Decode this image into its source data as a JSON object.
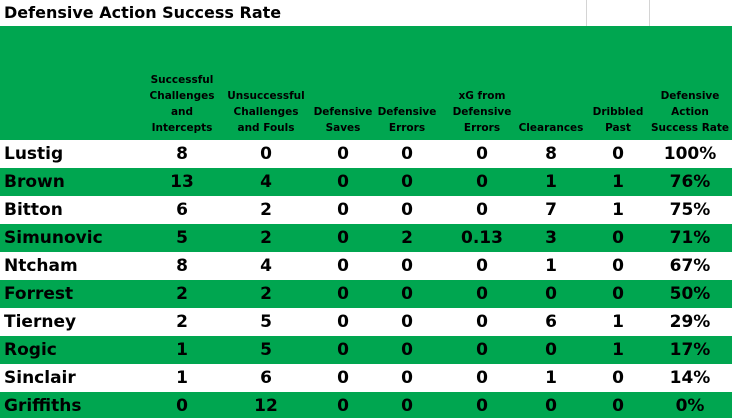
{
  "title": "Defensive Action Success Rate",
  "headers": [
    [
      "Successful",
      "Challenges",
      "and",
      "Intercepts"
    ],
    [
      "Unsuccessful",
      "Challenges",
      "and Fouls"
    ],
    [
      "Defensive",
      "Saves"
    ],
    [
      "Defensive",
      "Errors"
    ],
    [
      "xG from",
      "Defensive",
      "Errors"
    ],
    [
      "Clearances"
    ],
    [
      "Dribbled",
      "Past"
    ],
    [
      "Defensive",
      "Action",
      "Success Rate"
    ]
  ],
  "rows": [
    {
      "player": "Lustig",
      "values": [
        "8",
        "0",
        "0",
        "0",
        "0",
        "8",
        "0",
        "100%"
      ]
    },
    {
      "player": "Brown",
      "values": [
        "13",
        "4",
        "0",
        "0",
        "0",
        "1",
        "1",
        "76%"
      ]
    },
    {
      "player": "Bitton",
      "values": [
        "6",
        "2",
        "0",
        "0",
        "0",
        "7",
        "1",
        "75%"
      ]
    },
    {
      "player": "Simunovic",
      "values": [
        "5",
        "2",
        "0",
        "2",
        "0.13",
        "3",
        "0",
        "71%"
      ]
    },
    {
      "player": "Ntcham",
      "values": [
        "8",
        "4",
        "0",
        "0",
        "0",
        "1",
        "0",
        "67%"
      ]
    },
    {
      "player": "Forrest",
      "values": [
        "2",
        "2",
        "0",
        "0",
        "0",
        "0",
        "0",
        "50%"
      ]
    },
    {
      "player": "Tierney",
      "values": [
        "2",
        "5",
        "0",
        "0",
        "0",
        "6",
        "1",
        "29%"
      ]
    },
    {
      "player": "Rogic",
      "values": [
        "1",
        "5",
        "0",
        "0",
        "0",
        "0",
        "1",
        "17%"
      ]
    },
    {
      "player": "Sinclair",
      "values": [
        "1",
        "6",
        "0",
        "0",
        "0",
        "1",
        "0",
        "14%"
      ]
    },
    {
      "player": "Griffiths",
      "values": [
        "0",
        "12",
        "0",
        "0",
        "0",
        "0",
        "0",
        "0%"
      ]
    }
  ],
  "colors": {
    "band_green": "#00a650",
    "white": "#ffffff"
  }
}
